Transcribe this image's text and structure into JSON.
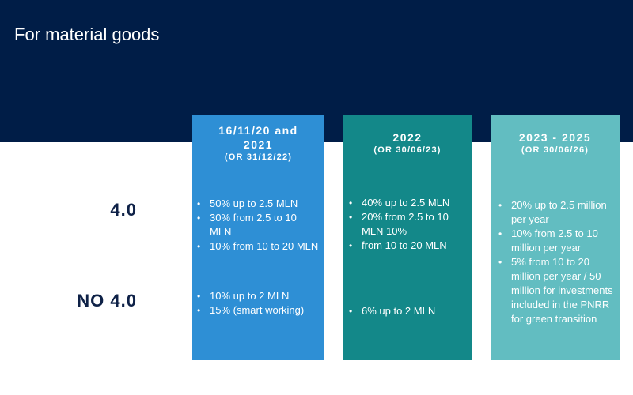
{
  "title": "For material goods",
  "row_labels": {
    "with_4_0": "4.0",
    "no_4_0": "NO 4.0"
  },
  "colors": {
    "band": "#001d47",
    "col1": "#2e8fd5",
    "col2": "#138889",
    "col3": "#62bdc1",
    "label": "#0e2147"
  },
  "columns": [
    {
      "title": "16/11/20 and 2021",
      "subtitle": "(OR 31/12/22)",
      "with_4_0": [
        "50% up to 2.5 MLN",
        "30% from 2.5 to 10 MLN",
        "10% from 10 to 20 MLN"
      ],
      "no_4_0": [
        "10% up to 2 MLN",
        "15% (smart working)"
      ]
    },
    {
      "title": "2022",
      "subtitle": "(OR 30/06/23)",
      "with_4_0": [
        "40% up to 2.5 MLN",
        "20% from 2.5 to 10 MLN 10%",
        "from 10 to 20 MLN"
      ],
      "no_4_0": [
        "6% up to 2 MLN"
      ]
    },
    {
      "title": "2023 - 2025",
      "subtitle": "(OR 30/06/26)",
      "with_4_0": [
        "20% up to 2.5 million per year",
        "10% from 2.5 to 10 million per year",
        "5% from 10 to 20 million per year / 50 million for investments included in the PNRR for green transition"
      ],
      "no_4_0": []
    }
  ]
}
